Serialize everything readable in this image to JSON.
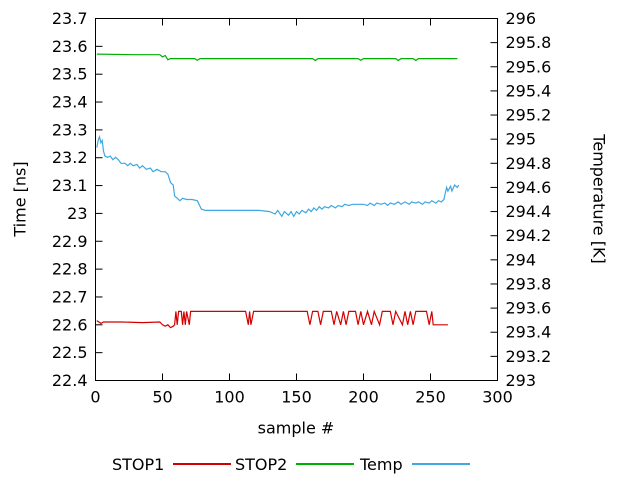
{
  "chart_data": {
    "type": "line",
    "title": "",
    "xlabel": "sample #",
    "ylabel_left": "Time [ns]",
    "ylabel_right": "Temperature [K]",
    "xlim": [
      0,
      300
    ],
    "xticks": [
      0,
      50,
      100,
      150,
      200,
      250,
      300
    ],
    "y1lim": [
      22.4,
      23.7
    ],
    "y1ticks": [
      22.4,
      22.5,
      22.6,
      22.7,
      22.8,
      22.9,
      23,
      23.1,
      23.2,
      23.3,
      23.4,
      23.5,
      23.6,
      23.7
    ],
    "y2lim": [
      293,
      296
    ],
    "y2ticks": [
      293,
      293.2,
      293.4,
      293.6,
      293.8,
      294,
      294.2,
      294.4,
      294.6,
      294.8,
      295,
      295.2,
      295.4,
      295.6,
      295.8,
      296
    ],
    "grid": false,
    "legend_position": "bottom",
    "series": [
      {
        "name": "STOP1",
        "color": "#d40000",
        "axis": "y1",
        "points": [
          [
            1,
            22.615
          ],
          [
            4,
            22.605
          ],
          [
            6,
            22.61
          ],
          [
            20,
            22.61
          ],
          [
            35,
            22.608
          ],
          [
            48,
            22.61
          ],
          [
            50,
            22.6
          ],
          [
            52,
            22.595
          ],
          [
            54,
            22.6
          ],
          [
            56,
            22.59
          ],
          [
            58,
            22.595
          ],
          [
            59,
            22.6
          ],
          [
            60,
            22.648
          ],
          [
            61,
            22.6
          ],
          [
            62,
            22.648
          ],
          [
            64,
            22.648
          ],
          [
            65,
            22.6
          ],
          [
            66,
            22.648
          ],
          [
            67,
            22.6
          ],
          [
            68,
            22.648
          ],
          [
            70,
            22.6
          ],
          [
            71,
            22.648
          ],
          [
            75,
            22.648
          ],
          [
            112,
            22.648
          ],
          [
            114,
            22.6
          ],
          [
            115,
            22.648
          ],
          [
            116,
            22.6
          ],
          [
            118,
            22.648
          ],
          [
            158,
            22.648
          ],
          [
            160,
            22.6
          ],
          [
            162,
            22.648
          ],
          [
            166,
            22.648
          ],
          [
            168,
            22.6
          ],
          [
            170,
            22.648
          ],
          [
            176,
            22.648
          ],
          [
            178,
            22.6
          ],
          [
            180,
            22.648
          ],
          [
            183,
            22.6
          ],
          [
            185,
            22.648
          ],
          [
            187,
            22.6
          ],
          [
            189,
            22.648
          ],
          [
            194,
            22.648
          ],
          [
            196,
            22.6
          ],
          [
            198,
            22.648
          ],
          [
            200,
            22.6
          ],
          [
            203,
            22.648
          ],
          [
            206,
            22.6
          ],
          [
            208,
            22.648
          ],
          [
            212,
            22.6
          ],
          [
            214,
            22.648
          ],
          [
            220,
            22.648
          ],
          [
            222,
            22.6
          ],
          [
            224,
            22.648
          ],
          [
            229,
            22.6
          ],
          [
            231,
            22.648
          ],
          [
            233,
            22.6
          ],
          [
            235,
            22.648
          ],
          [
            237,
            22.6
          ],
          [
            239,
            22.648
          ],
          [
            247,
            22.648
          ],
          [
            249,
            22.6
          ],
          [
            251,
            22.648
          ],
          [
            252,
            22.6
          ],
          [
            256,
            22.6
          ],
          [
            263,
            22.6
          ]
        ]
      },
      {
        "name": "STOP2",
        "color": "#00b000",
        "axis": "y1",
        "points": [
          [
            1,
            23.572
          ],
          [
            30,
            23.57
          ],
          [
            48,
            23.57
          ],
          [
            50,
            23.562
          ],
          [
            52,
            23.567
          ],
          [
            54,
            23.552
          ],
          [
            56,
            23.556
          ],
          [
            60,
            23.556
          ],
          [
            74,
            23.556
          ],
          [
            76,
            23.55
          ],
          [
            78,
            23.556
          ],
          [
            110,
            23.556
          ],
          [
            150,
            23.556
          ],
          [
            162,
            23.556
          ],
          [
            164,
            23.549
          ],
          [
            166,
            23.556
          ],
          [
            196,
            23.556
          ],
          [
            198,
            23.55
          ],
          [
            200,
            23.556
          ],
          [
            224,
            23.556
          ],
          [
            226,
            23.549
          ],
          [
            228,
            23.556
          ],
          [
            237,
            23.556
          ],
          [
            239,
            23.549
          ],
          [
            241,
            23.556
          ],
          [
            270,
            23.556
          ]
        ]
      },
      {
        "name": "Temp",
        "color": "#3fa8e0",
        "axis": "y2",
        "points": [
          [
            1,
            294.93
          ],
          [
            2,
            294.99
          ],
          [
            3,
            295.02
          ],
          [
            4,
            294.97
          ],
          [
            5,
            294.99
          ],
          [
            6,
            294.9
          ],
          [
            7,
            294.86
          ],
          [
            9,
            294.85
          ],
          [
            11,
            294.86
          ],
          [
            13,
            294.83
          ],
          [
            15,
            294.85
          ],
          [
            17,
            294.83
          ],
          [
            19,
            294.8
          ],
          [
            22,
            294.8
          ],
          [
            24,
            294.78
          ],
          [
            26,
            294.8
          ],
          [
            28,
            294.78
          ],
          [
            31,
            294.79
          ],
          [
            33,
            294.76
          ],
          [
            35,
            294.78
          ],
          [
            38,
            294.75
          ],
          [
            41,
            294.76
          ],
          [
            43,
            294.73
          ],
          [
            46,
            294.75
          ],
          [
            49,
            294.73
          ],
          [
            52,
            294.73
          ],
          [
            54,
            294.71
          ],
          [
            56,
            294.64
          ],
          [
            58,
            294.62
          ],
          [
            59,
            294.53
          ],
          [
            61,
            294.51
          ],
          [
            63,
            294.49
          ],
          [
            65,
            294.51
          ],
          [
            68,
            294.5
          ],
          [
            72,
            294.5
          ],
          [
            76,
            294.49
          ],
          [
            79,
            294.42
          ],
          [
            82,
            294.41
          ],
          [
            90,
            294.41
          ],
          [
            100,
            294.41
          ],
          [
            112,
            294.41
          ],
          [
            122,
            294.41
          ],
          [
            130,
            294.4
          ],
          [
            134,
            294.38
          ],
          [
            136,
            294.41
          ],
          [
            139,
            294.36
          ],
          [
            141,
            294.4
          ],
          [
            144,
            294.37
          ],
          [
            146,
            294.4
          ],
          [
            148,
            294.36
          ],
          [
            150,
            294.4
          ],
          [
            152,
            294.38
          ],
          [
            154,
            294.41
          ],
          [
            157,
            294.39
          ],
          [
            159,
            294.42
          ],
          [
            161,
            294.4
          ],
          [
            163,
            294.43
          ],
          [
            165,
            294.41
          ],
          [
            167,
            294.44
          ],
          [
            169,
            294.42
          ],
          [
            171,
            294.44
          ],
          [
            174,
            294.43
          ],
          [
            176,
            294.45
          ],
          [
            179,
            294.43
          ],
          [
            181,
            294.45
          ],
          [
            184,
            294.44
          ],
          [
            186,
            294.46
          ],
          [
            189,
            294.45
          ],
          [
            192,
            294.46
          ],
          [
            196,
            294.46
          ],
          [
            200,
            294.46
          ],
          [
            203,
            294.45
          ],
          [
            205,
            294.47
          ],
          [
            208,
            294.45
          ],
          [
            210,
            294.47
          ],
          [
            213,
            294.46
          ],
          [
            216,
            294.47
          ],
          [
            218,
            294.45
          ],
          [
            220,
            294.47
          ],
          [
            223,
            294.46
          ],
          [
            226,
            294.48
          ],
          [
            228,
            294.46
          ],
          [
            231,
            294.48
          ],
          [
            234,
            294.46
          ],
          [
            236,
            294.48
          ],
          [
            239,
            294.47
          ],
          [
            241,
            294.48
          ],
          [
            244,
            294.46
          ],
          [
            246,
            294.48
          ],
          [
            249,
            294.47
          ],
          [
            251,
            294.49
          ],
          [
            254,
            294.47
          ],
          [
            256,
            294.49
          ],
          [
            258,
            294.48
          ],
          [
            260,
            294.5
          ],
          [
            261,
            294.55
          ],
          [
            262,
            294.6
          ],
          [
            263,
            294.57
          ],
          [
            265,
            294.61
          ],
          [
            266,
            294.57
          ],
          [
            268,
            294.62
          ],
          [
            270,
            294.6
          ],
          [
            271,
            294.62
          ]
        ]
      }
    ]
  }
}
